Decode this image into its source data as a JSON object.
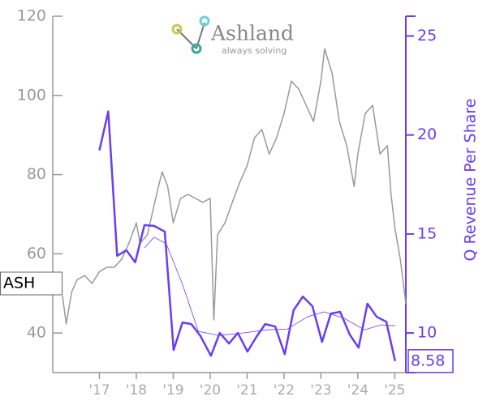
{
  "chart_data": {
    "type": "line",
    "logo": {
      "name": "Ashland",
      "tagline": "always solving"
    },
    "y2label": "Q Revenue Per Share",
    "xlim": [
      2016,
      2025.3
    ],
    "xticks": [
      {
        "value": 2017,
        "label": "'17"
      },
      {
        "value": 2018,
        "label": "'18"
      },
      {
        "value": 2019,
        "label": "'19"
      },
      {
        "value": 2020,
        "label": "'20"
      },
      {
        "value": 2021,
        "label": "'21"
      },
      {
        "value": 2022,
        "label": "'22"
      },
      {
        "value": 2023,
        "label": "'23"
      },
      {
        "value": 2024,
        "label": "'24"
      },
      {
        "value": 2025,
        "label": "'25"
      }
    ],
    "ylim": [
      30,
      120
    ],
    "yticks": [
      40,
      60,
      80,
      100,
      120
    ],
    "y2lim": [
      8,
      26
    ],
    "y2ticks": [
      10,
      15,
      20,
      25
    ],
    "series": [
      {
        "name": "ASH",
        "color": "#999999",
        "linewidth": 1.5,
        "x": [
          2016.0,
          2016.1,
          2016.25,
          2016.4,
          2016.6,
          2016.8,
          2017.0,
          2017.2,
          2017.4,
          2017.6,
          2017.8,
          2018.0,
          2018.1,
          2018.3,
          2018.5,
          2018.6,
          2018.7,
          2018.85,
          2019.0,
          2019.2,
          2019.4,
          2019.6,
          2019.8,
          2020.0,
          2020.1,
          2020.2,
          2020.4,
          2020.6,
          2020.8,
          2021.0,
          2021.2,
          2021.4,
          2021.6,
          2021.8,
          2022.0,
          2022.2,
          2022.4,
          2022.6,
          2022.8,
          2023.0,
          2023.1,
          2023.3,
          2023.5,
          2023.7,
          2023.9,
          2024.0,
          2024.2,
          2024.4,
          2024.6,
          2024.8,
          2024.9,
          2025.0,
          2025.15,
          2025.3
        ],
        "values": [
          49.4,
          42.3,
          50.4,
          53.5,
          54.5,
          52.5,
          55.5,
          56.6,
          56.6,
          58.6,
          62.7,
          67.8,
          62.7,
          64.8,
          73,
          77,
          80.7,
          77,
          67.8,
          74,
          75,
          74,
          73,
          74,
          43.3,
          64.8,
          67.8,
          73,
          78,
          82.2,
          89.3,
          91.4,
          85.2,
          89.3,
          95.4,
          103.6,
          101.6,
          97.5,
          93.4,
          103.6,
          111.8,
          105.7,
          93.4,
          87.3,
          77,
          85.2,
          95.4,
          97.5,
          85.2,
          87.3,
          75,
          66.8,
          58.6,
          47.4
        ]
      },
      {
        "color": "#6a3df2",
        "linewidth": 2.5,
        "axis": "y2",
        "x": [
          2017.0,
          2017.24,
          2017.48,
          2017.73,
          2017.97,
          2018.22,
          2018.48,
          2018.77,
          2019.01,
          2019.25,
          2019.49,
          2019.74,
          2020.02,
          2020.26,
          2020.51,
          2020.75,
          2021.01,
          2021.25,
          2021.49,
          2021.76,
          2022.02,
          2022.26,
          2022.51,
          2022.77,
          2023.03,
          2023.27,
          2023.52,
          2023.78,
          2024.02,
          2024.26,
          2024.51,
          2024.77,
          2025.01
        ],
        "values": [
          19.22,
          21.19,
          13.9,
          14.18,
          13.57,
          15.45,
          15.41,
          15.12,
          9.14,
          10.53,
          10.45,
          9.84,
          8.85,
          10,
          9.47,
          10,
          9.06,
          9.8,
          10.45,
          10.33,
          8.93,
          11.15,
          11.84,
          11.35,
          9.55,
          10.98,
          11.07,
          9.92,
          9.26,
          11.48,
          10.82,
          10.57,
          8.58
        ]
      },
      {
        "color": "#6a3df2",
        "linewidth": 0.8,
        "axis": "y2",
        "x": [
          2018.22,
          2018.48,
          2018.81,
          2019.25,
          2019.68,
          2020.24,
          2020.89,
          2021.54,
          2022.09,
          2022.64,
          2023.08,
          2023.63,
          2024.18,
          2024.62,
          2025.01
        ],
        "values": [
          14.3,
          14.84,
          14.51,
          12.46,
          10.08,
          9.88,
          10,
          10.16,
          10.2,
          10.82,
          11.07,
          10.74,
          10.16,
          10.41,
          10.37
        ]
      }
    ]
  }
}
